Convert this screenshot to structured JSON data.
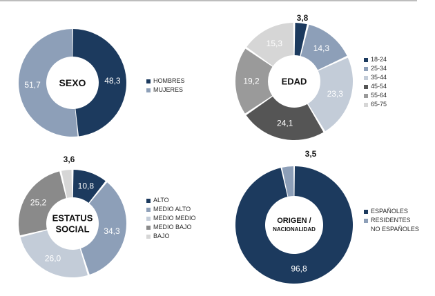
{
  "chart_data": [
    {
      "type": "pie",
      "title": "SEXO",
      "categories": [
        "HOMBRES",
        "MUJERES"
      ],
      "values": [
        48.3,
        51.7
      ],
      "value_labels": [
        "48,3",
        "51,7"
      ],
      "colors": [
        "#1c3a5e",
        "#8d9fb8"
      ],
      "legend_position": "right"
    },
    {
      "type": "pie",
      "title": "EDAD",
      "categories": [
        "18-24",
        "25-34",
        "35-44",
        "45-54",
        "55-64",
        "65-75"
      ],
      "values": [
        3.8,
        14.3,
        23.3,
        24.1,
        19.2,
        15.3
      ],
      "value_labels": [
        "3,8",
        "14,3",
        "23,3",
        "24,1",
        "19,2",
        "15,3"
      ],
      "colors": [
        "#1c3a5e",
        "#8d9fb8",
        "#c3ccd8",
        "#555555",
        "#9a9a9a",
        "#d6d6d6"
      ],
      "legend_position": "right"
    },
    {
      "type": "pie",
      "title": "ESTATUS SOCIAL",
      "title_lines": [
        "ESTATUS",
        "SOCIAL"
      ],
      "categories": [
        "ALTO",
        "MEDIO ALTO",
        "MEDIO MEDIO",
        "MEDIO BAJO",
        "BAJO"
      ],
      "values": [
        10.8,
        34.3,
        26.0,
        25.2,
        3.6
      ],
      "value_labels": [
        "10,8",
        "34,3",
        "26,0",
        "25,2",
        "3,6"
      ],
      "colors": [
        "#1c3a5e",
        "#8d9fb8",
        "#c3ccd8",
        "#8a8a8a",
        "#d6d6d6"
      ],
      "legend_position": "right"
    },
    {
      "type": "pie",
      "title": "ORIGEN / NACIONALIDAD",
      "title_lines": [
        "ORIGEN /",
        "NACIONALIDAD"
      ],
      "categories": [
        "ESPAÑOLES",
        "RESIDENTES NO ESPAÑOLES"
      ],
      "legend_lines": [
        [
          "ESPAÑOLES"
        ],
        [
          "RESIDENTES",
          "NO ESPAÑOLES"
        ]
      ],
      "values": [
        96.8,
        3.5
      ],
      "value_labels": [
        "96,8",
        "3,5"
      ],
      "colors": [
        "#1c3a5e",
        "#8d9fb8"
      ],
      "legend_position": "right"
    }
  ]
}
